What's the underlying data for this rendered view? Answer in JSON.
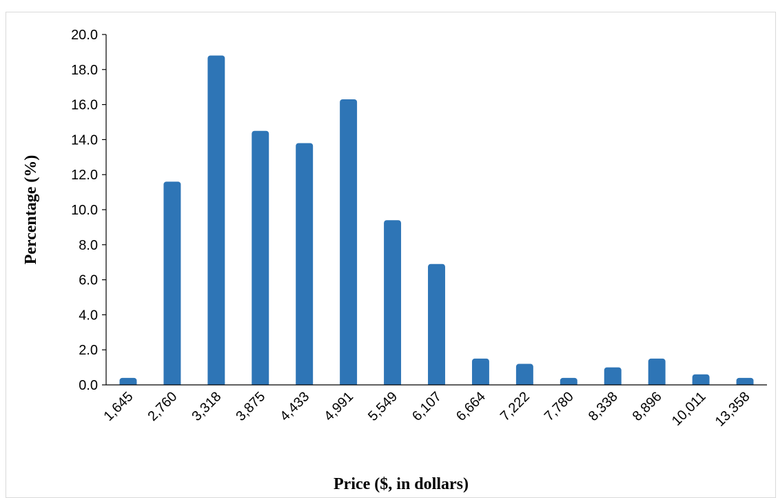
{
  "chart_data": {
    "type": "bar",
    "title": "",
    "xlabel": "Price ($, in dollars)",
    "ylabel": "Percentage (%)",
    "categories": [
      "1,645",
      "2,760",
      "3,318",
      "3,875",
      "4,433",
      "4,991",
      "5,549",
      "6,107",
      "6,664",
      "7,222",
      "7,780",
      "8,338",
      "8,896",
      "10,011",
      "13,358"
    ],
    "values": [
      0.4,
      11.6,
      18.8,
      14.5,
      13.8,
      16.3,
      9.4,
      6.9,
      1.5,
      1.2,
      0.4,
      1.0,
      1.5,
      0.6,
      0.4
    ],
    "ylim": [
      0,
      20
    ],
    "yticks": [
      "0.0",
      "2.0",
      "4.0",
      "6.0",
      "8.0",
      "10.0",
      "12.0",
      "14.0",
      "16.0",
      "18.0",
      "20.0"
    ],
    "grid": false,
    "bar_color": "#2e75b6"
  }
}
